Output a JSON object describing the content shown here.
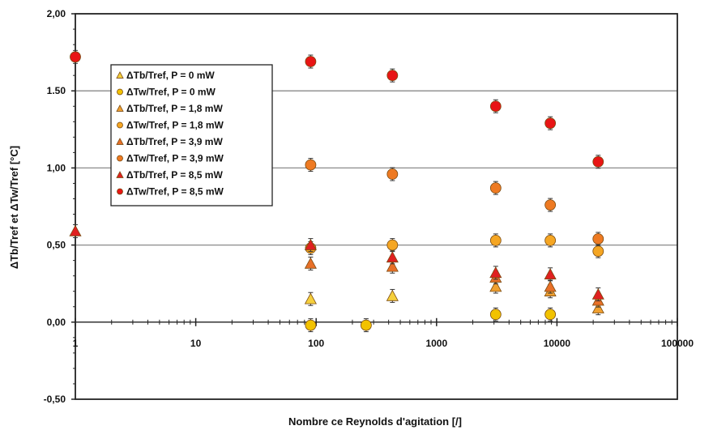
{
  "chart_data": {
    "type": "scatter",
    "title": "",
    "xlabel": "Nombre ce Reynolds d'agitation [/]",
    "ylabel": "ΔTb/Tref et ΔTw/Tref [°C]",
    "x_scale": "log",
    "xlim": [
      1,
      100000
    ],
    "ylim": [
      -0.5,
      2.0
    ],
    "x_ticks": [
      1,
      10,
      100,
      1000,
      10000,
      100000
    ],
    "x_tick_labels": [
      "1",
      "10",
      "100",
      "1000",
      "10000",
      "100000"
    ],
    "y_ticks": [
      -0.5,
      0,
      0.5,
      1,
      1.5,
      2
    ],
    "y_tick_labels": [
      "-0,50",
      "0,00",
      "0,50",
      "1,00",
      "1.50",
      "2,00"
    ],
    "gridlines_y": [
      0.5,
      1.0,
      1.5
    ],
    "legend_position": "upper-left",
    "error_bars": true,
    "series": [
      {
        "name": "ΔTb/Tref, P = 0 mW",
        "marker": "triangle",
        "color": "#f5cf3c",
        "x": [
          90,
          430
        ],
        "y": [
          0.15,
          0.17
        ]
      },
      {
        "name": "ΔTw/Tref, P = 0 mW",
        "marker": "circle",
        "color": "#f2c200",
        "x": [
          90,
          260,
          3100,
          8800
        ],
        "y": [
          -0.02,
          -0.02,
          0.05,
          0.05
        ]
      },
      {
        "name": "ΔTb/Tref, P = 1,8 mW",
        "marker": "triangle",
        "color": "#f0a030",
        "x": [
          3100,
          8800,
          22000
        ],
        "y": [
          0.23,
          0.2,
          0.09
        ]
      },
      {
        "name": "ΔTw/Tref, P = 1,8 mW",
        "marker": "circle",
        "color": "#f5a623",
        "x": [
          90,
          430,
          3100,
          8800,
          22000
        ],
        "y": [
          0.48,
          0.5,
          0.53,
          0.53,
          0.46
        ]
      },
      {
        "name": "ΔTb/Tref, P = 3,9 mW",
        "marker": "triangle",
        "color": "#e87028",
        "x": [
          90,
          430,
          3100,
          8800,
          22000
        ],
        "y": [
          0.38,
          0.36,
          0.29,
          0.23,
          0.14
        ]
      },
      {
        "name": "ΔTw/Tref, P = 3,9 mW",
        "marker": "circle",
        "color": "#ee7a22",
        "x": [
          90,
          430,
          3100,
          8800,
          22000
        ],
        "y": [
          1.02,
          0.96,
          0.87,
          0.76,
          0.54
        ]
      },
      {
        "name": "ΔTb/Tref, P = 8,5 mW",
        "marker": "triangle",
        "color": "#e02020",
        "x": [
          1,
          90,
          430,
          3100,
          8800,
          22000
        ],
        "y": [
          0.59,
          0.5,
          0.42,
          0.32,
          0.31,
          0.18
        ]
      },
      {
        "name": "ΔTw/Tref, P = 8,5 mW",
        "marker": "circle",
        "color": "#e81515",
        "x": [
          1,
          90,
          430,
          3100,
          8800,
          22000
        ],
        "y": [
          1.72,
          1.69,
          1.6,
          1.4,
          1.29,
          1.04
        ]
      }
    ]
  }
}
